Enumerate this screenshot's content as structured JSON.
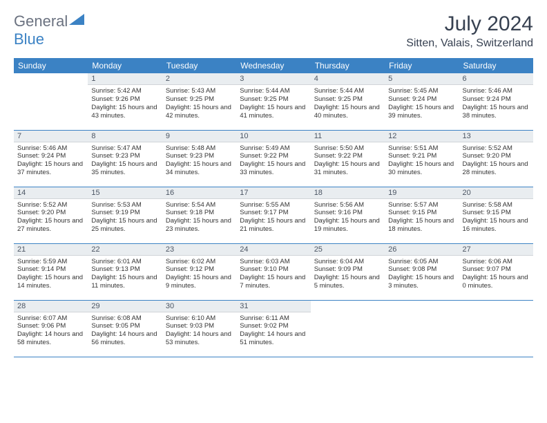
{
  "logo": {
    "text1": "General",
    "text2": "Blue",
    "color1": "#6b7280",
    "color2": "#3b82c4"
  },
  "title": "July 2024",
  "location": "Sitten, Valais, Switzerland",
  "colors": {
    "header_bg": "#3b82c4",
    "header_text": "#ffffff",
    "daynum_bg": "#e9edf0",
    "daynum_text": "#4b5563",
    "cell_border": "#3b82c4",
    "body_text": "#333333"
  },
  "daysOfWeek": [
    "Sunday",
    "Monday",
    "Tuesday",
    "Wednesday",
    "Thursday",
    "Friday",
    "Saturday"
  ],
  "startOffset": 1,
  "daysInMonth": 31,
  "days": [
    {
      "n": 1,
      "sunrise": "5:42 AM",
      "sunset": "9:26 PM",
      "daylight": "15 hours and 43 minutes."
    },
    {
      "n": 2,
      "sunrise": "5:43 AM",
      "sunset": "9:25 PM",
      "daylight": "15 hours and 42 minutes."
    },
    {
      "n": 3,
      "sunrise": "5:44 AM",
      "sunset": "9:25 PM",
      "daylight": "15 hours and 41 minutes."
    },
    {
      "n": 4,
      "sunrise": "5:44 AM",
      "sunset": "9:25 PM",
      "daylight": "15 hours and 40 minutes."
    },
    {
      "n": 5,
      "sunrise": "5:45 AM",
      "sunset": "9:24 PM",
      "daylight": "15 hours and 39 minutes."
    },
    {
      "n": 6,
      "sunrise": "5:46 AM",
      "sunset": "9:24 PM",
      "daylight": "15 hours and 38 minutes."
    },
    {
      "n": 7,
      "sunrise": "5:46 AM",
      "sunset": "9:24 PM",
      "daylight": "15 hours and 37 minutes."
    },
    {
      "n": 8,
      "sunrise": "5:47 AM",
      "sunset": "9:23 PM",
      "daylight": "15 hours and 35 minutes."
    },
    {
      "n": 9,
      "sunrise": "5:48 AM",
      "sunset": "9:23 PM",
      "daylight": "15 hours and 34 minutes."
    },
    {
      "n": 10,
      "sunrise": "5:49 AM",
      "sunset": "9:22 PM",
      "daylight": "15 hours and 33 minutes."
    },
    {
      "n": 11,
      "sunrise": "5:50 AM",
      "sunset": "9:22 PM",
      "daylight": "15 hours and 31 minutes."
    },
    {
      "n": 12,
      "sunrise": "5:51 AM",
      "sunset": "9:21 PM",
      "daylight": "15 hours and 30 minutes."
    },
    {
      "n": 13,
      "sunrise": "5:52 AM",
      "sunset": "9:20 PM",
      "daylight": "15 hours and 28 minutes."
    },
    {
      "n": 14,
      "sunrise": "5:52 AM",
      "sunset": "9:20 PM",
      "daylight": "15 hours and 27 minutes."
    },
    {
      "n": 15,
      "sunrise": "5:53 AM",
      "sunset": "9:19 PM",
      "daylight": "15 hours and 25 minutes."
    },
    {
      "n": 16,
      "sunrise": "5:54 AM",
      "sunset": "9:18 PM",
      "daylight": "15 hours and 23 minutes."
    },
    {
      "n": 17,
      "sunrise": "5:55 AM",
      "sunset": "9:17 PM",
      "daylight": "15 hours and 21 minutes."
    },
    {
      "n": 18,
      "sunrise": "5:56 AM",
      "sunset": "9:16 PM",
      "daylight": "15 hours and 19 minutes."
    },
    {
      "n": 19,
      "sunrise": "5:57 AM",
      "sunset": "9:15 PM",
      "daylight": "15 hours and 18 minutes."
    },
    {
      "n": 20,
      "sunrise": "5:58 AM",
      "sunset": "9:15 PM",
      "daylight": "15 hours and 16 minutes."
    },
    {
      "n": 21,
      "sunrise": "5:59 AM",
      "sunset": "9:14 PM",
      "daylight": "15 hours and 14 minutes."
    },
    {
      "n": 22,
      "sunrise": "6:01 AM",
      "sunset": "9:13 PM",
      "daylight": "15 hours and 11 minutes."
    },
    {
      "n": 23,
      "sunrise": "6:02 AM",
      "sunset": "9:12 PM",
      "daylight": "15 hours and 9 minutes."
    },
    {
      "n": 24,
      "sunrise": "6:03 AM",
      "sunset": "9:10 PM",
      "daylight": "15 hours and 7 minutes."
    },
    {
      "n": 25,
      "sunrise": "6:04 AM",
      "sunset": "9:09 PM",
      "daylight": "15 hours and 5 minutes."
    },
    {
      "n": 26,
      "sunrise": "6:05 AM",
      "sunset": "9:08 PM",
      "daylight": "15 hours and 3 minutes."
    },
    {
      "n": 27,
      "sunrise": "6:06 AM",
      "sunset": "9:07 PM",
      "daylight": "15 hours and 0 minutes."
    },
    {
      "n": 28,
      "sunrise": "6:07 AM",
      "sunset": "9:06 PM",
      "daylight": "14 hours and 58 minutes."
    },
    {
      "n": 29,
      "sunrise": "6:08 AM",
      "sunset": "9:05 PM",
      "daylight": "14 hours and 56 minutes."
    },
    {
      "n": 30,
      "sunrise": "6:10 AM",
      "sunset": "9:03 PM",
      "daylight": "14 hours and 53 minutes."
    },
    {
      "n": 31,
      "sunrise": "6:11 AM",
      "sunset": "9:02 PM",
      "daylight": "14 hours and 51 minutes."
    }
  ],
  "labels": {
    "sunrise": "Sunrise:",
    "sunset": "Sunset:",
    "daylight": "Daylight:"
  }
}
